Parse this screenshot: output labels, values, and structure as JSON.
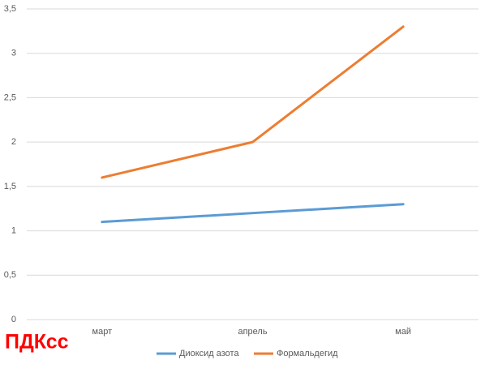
{
  "chart_data": {
    "type": "line",
    "categories": [
      "март",
      "апрель",
      "май"
    ],
    "series": [
      {
        "name": "Диоксид азота",
        "color": "#5b9bd5",
        "values": [
          1.1,
          1.2,
          1.3
        ]
      },
      {
        "name": "Формальдегид",
        "color": "#ed7d31",
        "values": [
          1.6,
          2,
          3.3
        ]
      }
    ],
    "ylim": [
      0,
      3.5
    ],
    "yticks": [
      0,
      {
        "value": 0.5,
        "label": "0,5"
      },
      1,
      {
        "value": 1.5,
        "label": "1,5"
      },
      2,
      {
        "value": 2.5,
        "label": "2,5"
      },
      3,
      {
        "value": 3.5,
        "label": "3,5"
      }
    ],
    "grid": true,
    "legend": "bottom",
    "annotation": "ПДКсс"
  }
}
